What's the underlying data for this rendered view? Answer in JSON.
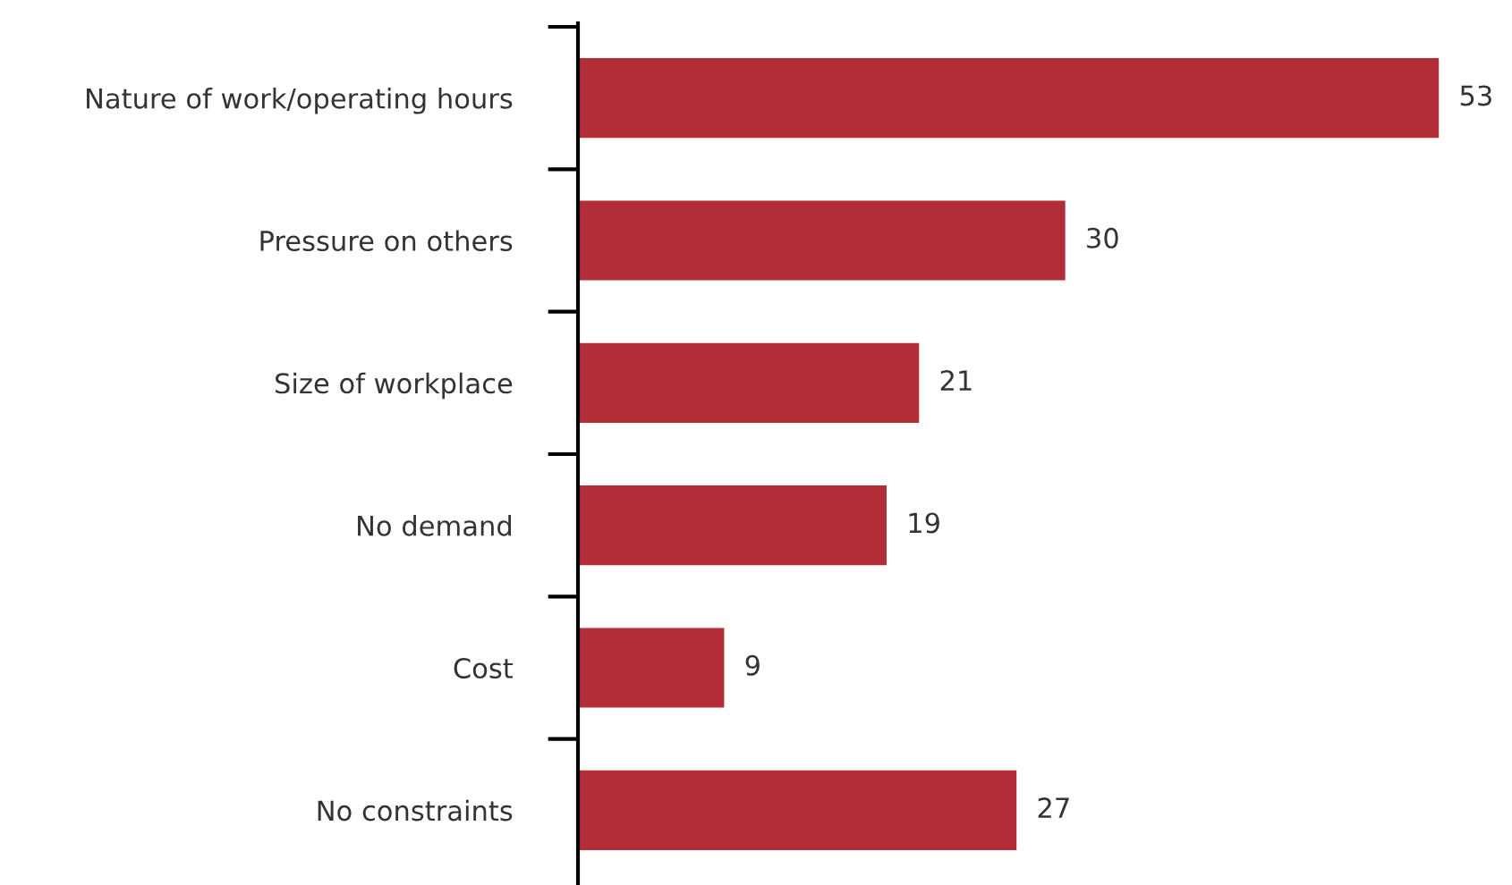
{
  "chart_data": {
    "type": "bar",
    "orientation": "horizontal",
    "categories": [
      "Nature of work/operating hours",
      "Pressure on others",
      "Size of workplace",
      "No demand",
      "Cost",
      "No constraints"
    ],
    "values": [
      53,
      30,
      21,
      19,
      9,
      27
    ],
    "color": "#b22d35",
    "data_labels": true
  }
}
